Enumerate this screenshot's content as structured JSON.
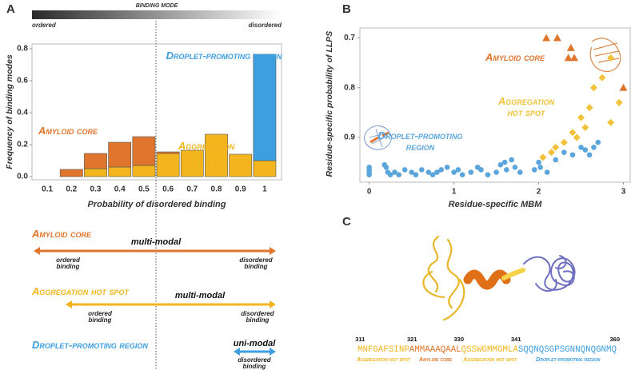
{
  "panel_labels": [
    "A",
    "B",
    "C"
  ],
  "binding_mode": {
    "title": "Binding mode",
    "left": "ordered",
    "right": "disordered"
  },
  "chart_data": [
    {
      "type": "stacked-bar",
      "xlabel": "Probability of disordered binding",
      "ylabel": "Frequency of binding modes",
      "categories": [
        "0.1",
        "0.2",
        "0.3",
        "0.4",
        "0.5",
        "0.6",
        "0.7",
        "0.8",
        "0.9",
        "1"
      ],
      "series": [
        {
          "name": "Aggregation hot spot",
          "color": "#f2b51d",
          "values": [
            0,
            0,
            0.05,
            0.06,
            0.07,
            0.145,
            0.165,
            0.265,
            0.14,
            0.1
          ]
        },
        {
          "name": "Amyloid core",
          "color": "#e0752d",
          "values": [
            0,
            0.045,
            0.095,
            0.155,
            0.18,
            0.01,
            0,
            0,
            0,
            0
          ]
        },
        {
          "name": "Droplet-promoting region",
          "color": "#3d9ee0",
          "values": [
            0,
            0,
            0,
            0,
            0,
            0,
            0,
            0,
            0,
            0.665
          ]
        }
      ],
      "ylim": [
        -0.02,
        0.83
      ],
      "yticks": [
        {
          "value": 0,
          "label": "0.0"
        },
        0.2,
        0.4,
        0.6,
        0.8
      ],
      "divider": 0.55
    },
    {
      "type": "scatter",
      "xlabel": "Residue-specific MBM",
      "ylabel": "Residue-specific probability of LLPS",
      "xlim": [
        -0.11,
        3.08
      ],
      "ylim": [
        0.99,
        0.68
      ],
      "xticks": [
        0,
        1,
        2,
        3
      ],
      "yticks": [
        0.7,
        0.8,
        0.9
      ],
      "series": [
        {
          "name": "Amyloid core",
          "color": "#e0752d",
          "marker": "triangle",
          "x": [
            2.09,
            2.22,
            2.35,
            2.42,
            2.38,
            3.0
          ],
          "values": [
            0.7,
            0.7,
            0.74,
            0.74,
            0.72,
            0.8
          ]
        },
        {
          "name": "Aggregation hot spot",
          "color": "#f2c23a",
          "marker": "diamond",
          "x": [
            2.05,
            2.15,
            2.2,
            2.3,
            2.4,
            2.45,
            2.5,
            2.55,
            2.6,
            2.65,
            2.75,
            2.85,
            2.95,
            2.85
          ],
          "values": [
            0.94,
            0.93,
            0.92,
            0.91,
            0.89,
            0.9,
            0.86,
            0.88,
            0.84,
            0.8,
            0.78,
            0.74,
            0.83,
            0.87
          ]
        },
        {
          "name": "Droplet-promoting region",
          "color": "#5aa5dc",
          "marker": "circle",
          "x": [
            0,
            0,
            0,
            0,
            0.18,
            0.2,
            0.22,
            0.25,
            0.3,
            0.35,
            0.42,
            0.5,
            0.55,
            0.62,
            0.7,
            0.75,
            0.8,
            0.85,
            0.92,
            1.0,
            1.05,
            1.1,
            1.2,
            1.28,
            1.32,
            1.4,
            1.5,
            1.55,
            1.6,
            1.62,
            1.68,
            1.72,
            1.78,
            1.95,
            2.0,
            2.02,
            2.1,
            2.2,
            2.3,
            2.4,
            2.5,
            2.55,
            2.6,
            2.65,
            2.7
          ],
          "values": [
            0.965,
            0.975,
            0.97,
            0.96,
            0.955,
            0.96,
            0.97,
            0.975,
            0.97,
            0.975,
            0.965,
            0.97,
            0.975,
            0.965,
            0.97,
            0.975,
            0.97,
            0.965,
            0.96,
            0.97,
            0.965,
            0.975,
            0.97,
            0.96,
            0.965,
            0.975,
            0.97,
            0.955,
            0.95,
            0.965,
            0.945,
            0.96,
            0.97,
            0.965,
            0.95,
            0.96,
            0.97,
            0.945,
            0.93,
            0.935,
            0.92,
            0.925,
            0.935,
            0.92,
            0.91
          ]
        }
      ]
    }
  ],
  "modes": [
    {
      "region": "Amyloid core",
      "color": "#e0752d",
      "mode": "multi-modal",
      "ordered": "ordered binding",
      "disordered": "disordered binding"
    },
    {
      "region": "Aggregation hot spot",
      "color": "#f2b51d",
      "mode": "multi-modal",
      "ordered": "ordered binding",
      "disordered": "disordered binding"
    },
    {
      "region": "Droplet-promoting region",
      "color": "#3d9ee0",
      "mode": "uni-modal",
      "disordered": "disordered binding"
    }
  ],
  "sequence": {
    "positions": [
      311,
      321,
      330,
      341,
      360
    ],
    "segments": [
      {
        "text": "MNFGAFSINP",
        "label": "Aggregation hot spot",
        "color": "#f2b51d"
      },
      {
        "text": "AMMAAAQAAL",
        "label": "Amyloid core",
        "color": "#e0752d"
      },
      {
        "text": "QSSWGMMGMLA",
        "label": "Aggregation hot spot",
        "color": "#f2b51d"
      },
      {
        "text": "SQQNQSGPSGNNQNQGNMQ",
        "label": "Droplet-promoting region",
        "color": "#3d9ee0"
      }
    ]
  }
}
